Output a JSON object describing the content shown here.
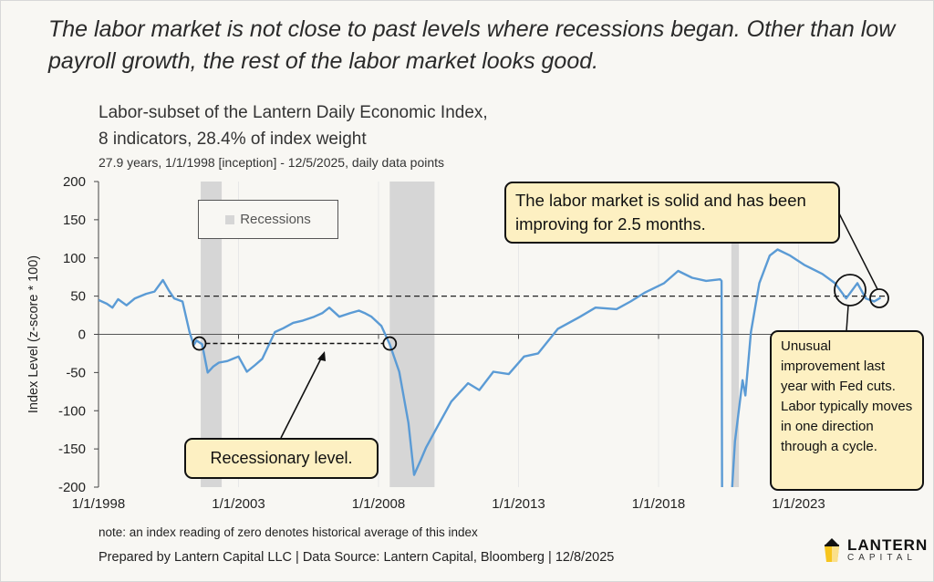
{
  "headline": "The labor market is not close to past levels where recessions began. Other than low payroll growth, the rest of the labor market looks good.",
  "footer": {
    "note": "note: an index reading of zero denotes historical average of this index",
    "prepared": "Prepared by Lantern Capital LLC | Data Source: Lantern Capital, Bloomberg | 12/8/2025",
    "logo_line1": "LANTERN",
    "logo_line2": "CAPITAL"
  },
  "callouts": {
    "solid": "The labor market is solid and has been improving for 2.5 months.",
    "recessionary": "Recessionary level.",
    "unusual": "Unusual improvement last year with Fed cuts. Labor typically moves in one direction through a cycle."
  },
  "colors": {
    "series": "#5b9bd5",
    "recession": "#d6d6d6",
    "callout_fill": "#fdf0c2",
    "background": "#f8f7f3"
  },
  "chart_data": {
    "type": "line",
    "title_line1": "Labor-subset of the Lantern Daily Economic Index,",
    "title_line2": "8 indicators, 28.4% of index weight",
    "subtitle": "27.9 years, 1/1/1998 [inception] - 12/5/2025, daily data points",
    "xlabel": "",
    "ylabel": "Index Level (z-score * 100)",
    "xlim": [
      1998,
      2026.1
    ],
    "ylim": [
      -200,
      200
    ],
    "yticks": [
      200,
      150,
      100,
      50,
      0,
      -50,
      -100,
      -150,
      -200
    ],
    "xticks": [
      {
        "year": 1998,
        "label": "1/1/1998"
      },
      {
        "year": 2003,
        "label": "1/1/2003"
      },
      {
        "year": 2008,
        "label": "1/1/2008"
      },
      {
        "year": 2013,
        "label": "1/1/2013"
      },
      {
        "year": 2018,
        "label": "1/1/2018"
      },
      {
        "year": 2023,
        "label": "1/1/2023"
      }
    ],
    "legend": {
      "label": "Recessions",
      "placement": "top-left"
    },
    "recessions": [
      [
        2001.65,
        2002.4
      ],
      [
        2008.4,
        2010.0
      ],
      [
        2020.6,
        2020.87
      ]
    ],
    "reference_lines": {
      "dashed_level": 50,
      "recessionary_level": -12,
      "recessionary_span": [
        2001.6,
        2008.4
      ]
    },
    "series": [
      {
        "name": "Labor-subset index",
        "x": [
          1998.0,
          1998.3,
          1998.5,
          1998.7,
          1999.0,
          1999.3,
          1999.7,
          2000.0,
          2000.3,
          2000.5,
          2000.7,
          2001.0,
          2001.25,
          2001.4,
          2001.5,
          2001.7,
          2001.9,
          2002.1,
          2002.3,
          2002.6,
          2003.0,
          2003.3,
          2003.6,
          2003.85,
          2004.3,
          2004.6,
          2004.95,
          2005.3,
          2005.7,
          2006.0,
          2006.24,
          2006.6,
          2007.0,
          2007.3,
          2007.5,
          2007.75,
          2008.1,
          2008.4,
          2008.74,
          2009.07,
          2009.27,
          2009.5,
          2009.7,
          2010.1,
          2010.6,
          2011.2,
          2011.6,
          2012.1,
          2012.65,
          2013.2,
          2013.7,
          2014.4,
          2015.2,
          2015.75,
          2016.5,
          2017.0,
          2017.53,
          2018.2,
          2018.7,
          2019.2,
          2019.7,
          2020.2,
          2020.25,
          2020.27,
          2020.55,
          2020.63,
          2020.73,
          2021.0,
          2021.1,
          2021.3,
          2021.6,
          2021.97,
          2022.25,
          2022.7,
          2023.2,
          2023.85,
          2024.3,
          2024.7,
          2025.1,
          2025.4,
          2025.7,
          2025.93
        ],
        "values": [
          45,
          40,
          35,
          46,
          38,
          47,
          53,
          56,
          71,
          58,
          47,
          43,
          3,
          -14,
          -8,
          -13,
          -50,
          -42,
          -37,
          -35,
          -29,
          -49,
          -40,
          -32,
          3,
          8,
          15,
          18,
          23,
          28,
          35,
          23,
          28,
          31,
          28,
          23,
          11,
          -13,
          -49,
          -116,
          -184,
          -165,
          -148,
          -121,
          -88,
          -64,
          -73,
          -49,
          -52,
          -29,
          -25,
          7,
          23,
          35,
          33,
          43,
          55,
          67,
          83,
          74,
          70,
          72,
          70,
          -230,
          -230,
          -200,
          -140,
          -60,
          -80,
          3,
          67,
          103,
          111,
          103,
          91,
          79,
          67,
          47,
          67,
          47,
          43,
          48
        ]
      }
    ]
  }
}
